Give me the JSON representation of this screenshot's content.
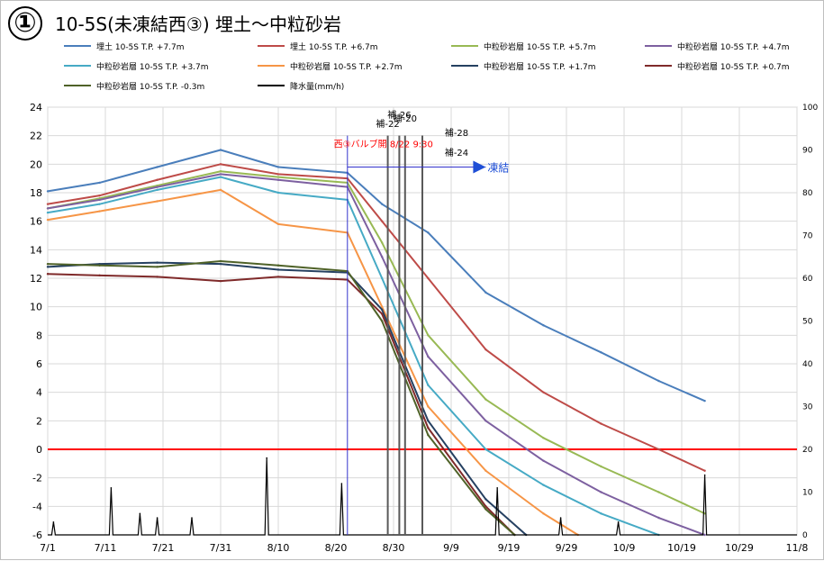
{
  "title": {
    "number": "①",
    "text": "10-5S(未凍結西③)  埋土～中粒砂岩"
  },
  "chart_data": {
    "type": "line",
    "x_tick_labels": [
      "7/1",
      "7/11",
      "7/21",
      "7/31",
      "8/10",
      "8/20",
      "8/30",
      "9/9",
      "9/19",
      "9/29",
      "10/9",
      "10/19",
      "10/29",
      "11/8"
    ],
    "xlim": [
      "7/1",
      "11/8"
    ],
    "ylim_left": [
      -6,
      24
    ],
    "y_ticks_left": [
      -6,
      -4,
      -2,
      0,
      2,
      4,
      6,
      8,
      10,
      12,
      14,
      16,
      18,
      20,
      22,
      24
    ],
    "ylim_right": [
      0,
      100
    ],
    "y_ticks_right": [
      0,
      10,
      20,
      30,
      40,
      50,
      60,
      70,
      80,
      90,
      100
    ],
    "grid": true,
    "legend_position": "top",
    "series": [
      {
        "name": "埋土 10-5S T.P. +7.7m",
        "color": "#4a7ebb",
        "x": [
          "7/1",
          "7/10",
          "7/20",
          "7/31",
          "8/10",
          "8/22",
          "8/28",
          "9/5",
          "9/15",
          "9/25",
          "10/5",
          "10/15",
          "10/23"
        ],
        "values": [
          18.1,
          18.7,
          19.8,
          21.0,
          19.8,
          19.4,
          17.2,
          15.2,
          11.0,
          8.7,
          6.8,
          4.8,
          3.4
        ]
      },
      {
        "name": "埋土 10-5S T.P. +6.7m",
        "color": "#be4b48",
        "x": [
          "7/1",
          "7/10",
          "7/20",
          "7/31",
          "8/10",
          "8/22",
          "8/28",
          "9/5",
          "9/15",
          "9/25",
          "10/5",
          "10/15",
          "10/23"
        ],
        "values": [
          17.2,
          17.8,
          18.9,
          20.0,
          19.3,
          19.0,
          16.0,
          12.0,
          7.0,
          4.0,
          1.8,
          0.0,
          -1.5
        ]
      },
      {
        "name": "中粒砂岩層 10-5S T.P. +5.7m",
        "color": "#98b954",
        "x": [
          "7/1",
          "7/10",
          "7/20",
          "7/31",
          "8/10",
          "8/22",
          "8/28",
          "9/5",
          "9/15",
          "9/25",
          "10/5",
          "10/15",
          "10/23"
        ],
        "values": [
          16.9,
          17.6,
          18.5,
          19.5,
          19.1,
          18.7,
          14.5,
          8.0,
          3.5,
          0.8,
          -1.2,
          -3.0,
          -4.5
        ]
      },
      {
        "name": "中粒砂岩層 10-5S T.P. +4.7m",
        "color": "#7d60a0",
        "x": [
          "7/1",
          "7/10",
          "7/20",
          "7/31",
          "8/10",
          "8/22",
          "8/28",
          "9/5",
          "9/15",
          "9/25",
          "10/5",
          "10/15",
          "10/23"
        ],
        "values": [
          16.9,
          17.5,
          18.4,
          19.3,
          18.9,
          18.4,
          13.5,
          6.5,
          2.0,
          -0.8,
          -3.0,
          -4.8,
          -6.0
        ]
      },
      {
        "name": "中粒砂岩層 10-5S T.P. +3.7m",
        "color": "#46aac5",
        "x": [
          "7/1",
          "7/10",
          "7/20",
          "7/31",
          "8/10",
          "8/22",
          "8/28",
          "9/5",
          "9/15",
          "9/25",
          "10/5",
          "10/15"
        ],
        "values": [
          16.6,
          17.2,
          18.2,
          19.1,
          18.0,
          17.5,
          12.0,
          4.5,
          0.0,
          -2.5,
          -4.5,
          -6.0
        ]
      },
      {
        "name": "中粒砂岩層 10-5S T.P. +2.7m",
        "color": "#f69546",
        "x": [
          "7/1",
          "7/10",
          "7/20",
          "7/31",
          "8/10",
          "8/22",
          "8/28",
          "9/5",
          "9/15",
          "9/25",
          "10/1"
        ],
        "values": [
          16.1,
          16.7,
          17.4,
          18.2,
          15.8,
          15.2,
          10.0,
          3.0,
          -1.5,
          -4.5,
          -6.0
        ]
      },
      {
        "name": "中粒砂岩層 10-5S T.P. +1.7m",
        "color": "#254061",
        "x": [
          "7/1",
          "7/10",
          "7/20",
          "7/31",
          "8/10",
          "8/22",
          "8/28",
          "9/5",
          "9/15",
          "9/22"
        ],
        "values": [
          12.8,
          13.0,
          13.1,
          13.0,
          12.6,
          12.4,
          9.8,
          2.0,
          -3.5,
          -6.0
        ]
      },
      {
        "name": "中粒砂岩層 10-5S T.P. +0.7m",
        "color": "#7f2a2a",
        "x": [
          "7/1",
          "7/10",
          "7/20",
          "7/31",
          "8/10",
          "8/22",
          "8/28",
          "9/5",
          "9/15",
          "9/20"
        ],
        "values": [
          12.3,
          12.2,
          12.1,
          11.8,
          12.1,
          11.9,
          9.5,
          1.5,
          -4.0,
          -6.0
        ]
      },
      {
        "name": "中粒砂岩層 10-5S T.P. -0.3m",
        "color": "#4f6228",
        "x": [
          "7/1",
          "7/10",
          "7/20",
          "7/31",
          "8/10",
          "8/22",
          "8/28",
          "9/5",
          "9/15",
          "9/20"
        ],
        "values": [
          13.0,
          12.9,
          12.8,
          13.2,
          12.9,
          12.5,
          9.0,
          1.0,
          -4.2,
          -6.0
        ]
      },
      {
        "name": "降水量(mm/h)",
        "color": "#000000",
        "axis": "right",
        "x": [
          "7/2",
          "7/12",
          "7/17",
          "7/20",
          "7/26",
          "8/8",
          "8/21",
          "9/17",
          "9/28",
          "10/8",
          "10/23"
        ],
        "values": [
          3,
          11,
          5,
          4,
          4,
          18,
          12,
          11,
          4,
          3,
          14
        ]
      }
    ],
    "annotations": [
      {
        "text": "補-22",
        "x": "8/29"
      },
      {
        "text": "補-26",
        "x": "8/31"
      },
      {
        "text": "補-20",
        "x": "9/1"
      },
      {
        "text": "補-28",
        "x": "9/4"
      },
      {
        "text": "補-24",
        "x": "9/4"
      },
      {
        "text": "西③バルブ開 8/22 9:30",
        "x": "8/22",
        "color": "#ff0000"
      },
      {
        "text": "凍結",
        "x": "9/15"
      }
    ],
    "reference_line_y": 0
  }
}
